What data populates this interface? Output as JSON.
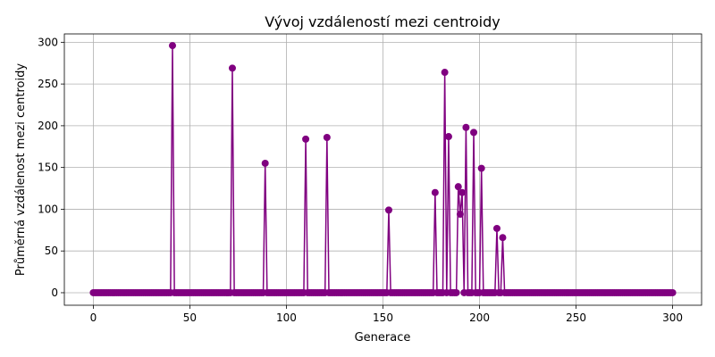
{
  "chart_data": {
    "type": "line",
    "title": "Vývoj vzdáleností mezi centroidy",
    "xlabel": "Generace",
    "ylabel": "Průměrná vzdálenost mezi centroidy",
    "xlim": [
      -15,
      315
    ],
    "ylim": [
      -15,
      310
    ],
    "xticks": [
      0,
      50,
      100,
      150,
      200,
      250,
      300
    ],
    "yticks": [
      0,
      50,
      100,
      150,
      200,
      250,
      300
    ],
    "grid": true,
    "legend": "none",
    "marker": "circle",
    "color": "#800080",
    "x_range": [
      0,
      300
    ],
    "baseline_value": 0,
    "peaks": [
      {
        "x": 41,
        "y": 296
      },
      {
        "x": 72,
        "y": 269
      },
      {
        "x": 89,
        "y": 155
      },
      {
        "x": 110,
        "y": 184
      },
      {
        "x": 121,
        "y": 186
      },
      {
        "x": 153,
        "y": 99
      },
      {
        "x": 177,
        "y": 120
      },
      {
        "x": 182,
        "y": 264
      },
      {
        "x": 184,
        "y": 187
      },
      {
        "x": 189,
        "y": 127
      },
      {
        "x": 190,
        "y": 94
      },
      {
        "x": 191,
        "y": 120
      },
      {
        "x": 193,
        "y": 198
      },
      {
        "x": 197,
        "y": 192
      },
      {
        "x": 201,
        "y": 149
      },
      {
        "x": 209,
        "y": 77
      },
      {
        "x": 212,
        "y": 66
      }
    ]
  }
}
